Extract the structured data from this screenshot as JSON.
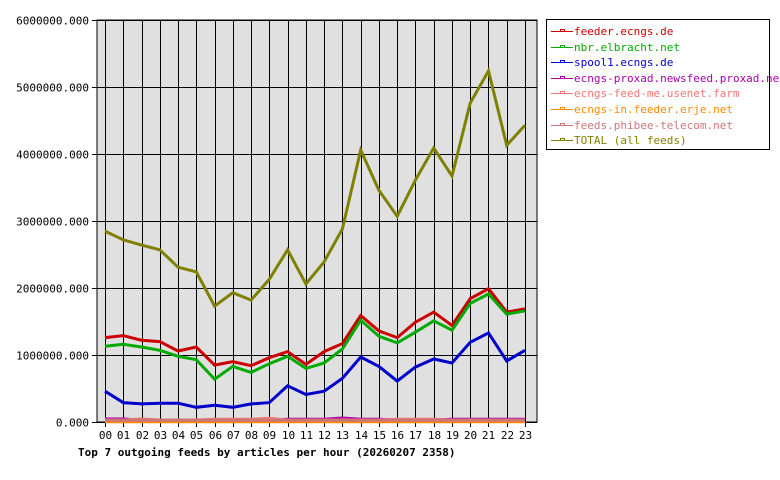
{
  "chart_data": {
    "type": "line",
    "title": "Top 7 outgoing feeds by articles per hour (20260207 2358)",
    "xlabel": "",
    "ylabel": "",
    "ylim": [
      0,
      6000000
    ],
    "yticks": [
      "0.000",
      "1000000.000",
      "2000000.000",
      "3000000.000",
      "4000000.000",
      "5000000.000",
      "6000000.000"
    ],
    "grid": true,
    "legend_position": "right",
    "categories": [
      "00",
      "01",
      "02",
      "03",
      "04",
      "05",
      "06",
      "07",
      "08",
      "09",
      "10",
      "11",
      "12",
      "13",
      "14",
      "15",
      "16",
      "17",
      "18",
      "19",
      "20",
      "21",
      "22",
      "23"
    ],
    "series": [
      {
        "name": "feeder.ecngs.de",
        "color": "#cc0000",
        "values": [
          1260000,
          1290000,
          1220000,
          1200000,
          1060000,
          1120000,
          850000,
          900000,
          840000,
          960000,
          1050000,
          860000,
          1050000,
          1170000,
          1590000,
          1360000,
          1260000,
          1490000,
          1640000,
          1440000,
          1840000,
          1990000,
          1640000,
          1690000
        ]
      },
      {
        "name": "nbr.elbracht.net",
        "color": "#00aa00",
        "values": [
          1130000,
          1160000,
          1120000,
          1070000,
          980000,
          930000,
          640000,
          830000,
          740000,
          870000,
          980000,
          800000,
          880000,
          1090000,
          1520000,
          1280000,
          1180000,
          1340000,
          1510000,
          1370000,
          1770000,
          1910000,
          1610000,
          1660000
        ]
      },
      {
        "name": "spool1.ecngs.de",
        "color": "#0000cc",
        "values": [
          460000,
          290000,
          270000,
          280000,
          280000,
          220000,
          250000,
          220000,
          270000,
          290000,
          540000,
          410000,
          460000,
          650000,
          970000,
          830000,
          610000,
          820000,
          940000,
          880000,
          1190000,
          1330000,
          910000,
          1070000
        ]
      },
      {
        "name": "ecngs-proxad.newsfeed.proxad.net",
        "color": "#aa00aa",
        "values": [
          45000,
          45000,
          30000,
          30000,
          30000,
          30000,
          30000,
          30000,
          30000,
          30000,
          40000,
          40000,
          40000,
          60000,
          40000,
          40000,
          30000,
          30000,
          30000,
          40000,
          40000,
          40000,
          40000,
          40000
        ]
      },
      {
        "name": "ecngs-feed-me.usenet.farm",
        "color": "#ee7777",
        "values": [
          30000,
          30000,
          45000,
          30000,
          30000,
          30000,
          40000,
          40000,
          40000,
          55000,
          30000,
          30000,
          30000,
          30000,
          30000,
          30000,
          40000,
          40000,
          40000,
          30000,
          30000,
          30000,
          30000,
          30000
        ]
      },
      {
        "name": "ecngs-in.feeder.erje.net",
        "color": "#ff8800",
        "values": [
          5000,
          5000,
          5000,
          5000,
          5000,
          5000,
          5000,
          5000,
          5000,
          5000,
          5000,
          5000,
          5000,
          5000,
          5000,
          5000,
          5000,
          5000,
          5000,
          5000,
          5000,
          5000,
          5000,
          5000
        ]
      },
      {
        "name": "feeds.phibee-telecom.net",
        "color": "#cc7777",
        "values": [
          25000,
          25000,
          25000,
          25000,
          25000,
          25000,
          25000,
          25000,
          25000,
          25000,
          25000,
          25000,
          25000,
          25000,
          25000,
          25000,
          25000,
          25000,
          25000,
          25000,
          25000,
          25000,
          25000,
          25000
        ]
      },
      {
        "name": "TOTAL (all feeds)",
        "color": "#808000",
        "values": [
          2850000,
          2720000,
          2640000,
          2570000,
          2310000,
          2240000,
          1730000,
          1930000,
          1820000,
          2130000,
          2570000,
          2060000,
          2390000,
          2880000,
          4060000,
          3460000,
          3070000,
          3610000,
          4090000,
          3670000,
          4760000,
          5240000,
          4130000,
          4430000
        ]
      }
    ]
  },
  "colors": {
    "plot_background": "#e0e0e0",
    "grid": "#000000",
    "background": "#ffffff"
  }
}
